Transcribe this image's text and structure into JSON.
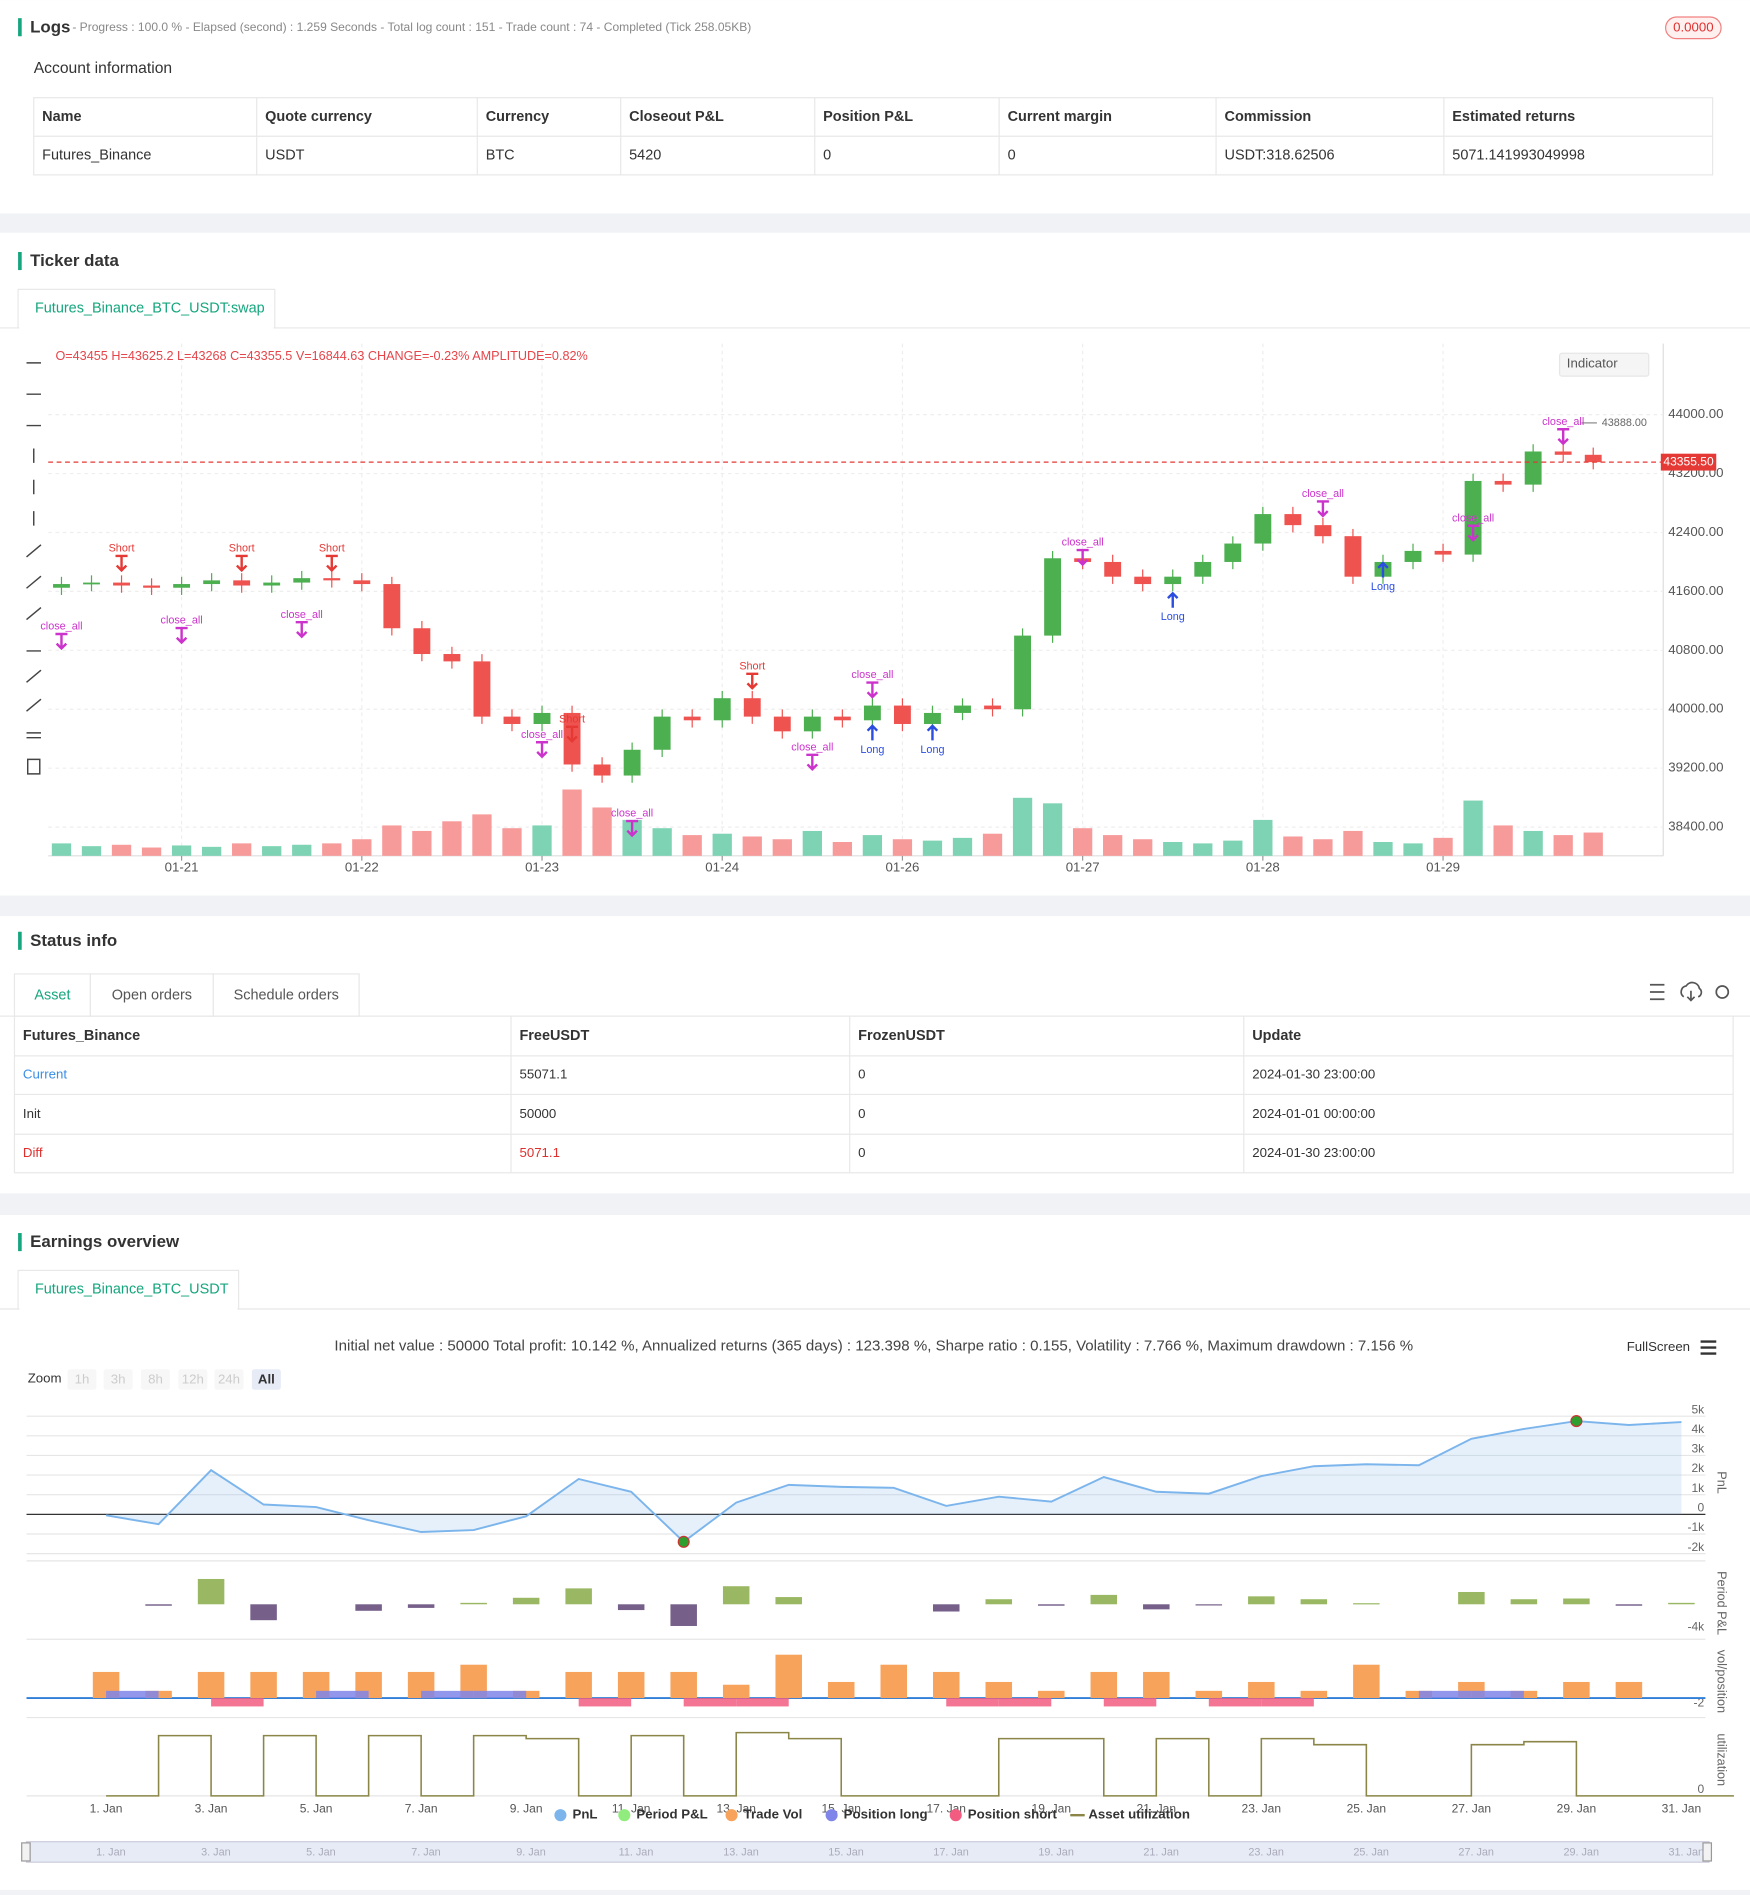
{
  "logs": {
    "title": "Logs",
    "status": "- Progress : 100.0 % - Elapsed (second) : 1.259  Seconds - Total log count : 151 - Trade count : 74 - Completed (Tick 258.05KB)",
    "badge": "0.0000"
  },
  "account": {
    "title": "Account information",
    "header": [
      "Name",
      "Quote currency",
      "Currency",
      "Closeout P&L",
      "Position P&L",
      "Current margin",
      "Commission",
      "Estimated returns"
    ],
    "rows": [
      [
        "Futures_Binance",
        "USDT",
        "BTC",
        "5420",
        "0",
        "0",
        "USDT:318.62506",
        "5071.141993049998"
      ]
    ]
  },
  "ticker": {
    "title": "Ticker data",
    "tab": "Futures_Binance_BTC_USDT:swap",
    "indicator": "Indicator"
  },
  "status": {
    "title": "Status info",
    "tabs": [
      "Asset",
      "Open orders",
      "Schedule orders"
    ],
    "header": [
      "Futures_Binance",
      "FreeUSDT",
      "FrozenUSDT",
      "Update"
    ],
    "rows": [
      [
        "Current",
        "55071.1",
        "0",
        "2024-01-30 23:00:00"
      ],
      [
        "Init",
        "50000",
        "0",
        "2024-01-01 00:00:00"
      ],
      [
        "Diff",
        "5071.1",
        "0",
        "2024-01-30 23:00:00"
      ]
    ],
    "link_color": "#3a8ee6",
    "diff_color": "#e0302e"
  },
  "earnings": {
    "title": "Earnings overview",
    "tab": "Futures_Binance_BTC_USDT",
    "summary": "Initial net value : 50000 Total profit: 10.142 %, Annualized returns (365 days) : 123.398 %, Sharpe ratio : 0.155, Volatility : 7.766 %, Maximum drawdown : 7.156 %",
    "fullscreen": "FullScreen",
    "zoom_label": "Zoom",
    "zoom": [
      "1h",
      "3h",
      "8h",
      "12h",
      "24h",
      "All"
    ]
  },
  "chart_data": [
    {
      "type": "candlestick",
      "header": "O=43455 H=43625.2 L=43268 C=43355.5 V=16844.63 CHANGE=-0.23% AMPLITUDE=0.82%",
      "categories": [
        null,
        null,
        null,
        null,
        "01-21",
        null,
        null,
        null,
        null,
        null,
        "01-22",
        null,
        null,
        null,
        null,
        null,
        "01-23",
        null,
        null,
        null,
        null,
        null,
        "01-24",
        null,
        null,
        null,
        null,
        null,
        "01-26",
        null,
        null,
        null,
        null,
        null,
        "01-27",
        null,
        null,
        null,
        null,
        null,
        "01-28",
        null,
        null,
        null,
        null,
        null,
        "01-29",
        null,
        null,
        null,
        null,
        null
      ],
      "open": [
        41650,
        41700,
        41720,
        41680,
        41650,
        41700,
        41750,
        41680,
        41720,
        41780,
        41750,
        41700,
        41100,
        40750,
        40650,
        39900,
        39800,
        39950,
        39250,
        39100,
        39450,
        39900,
        39850,
        40150,
        39900,
        39700,
        39900,
        39850,
        40050,
        39800,
        39950,
        40050,
        40000,
        41000,
        42050,
        42000,
        41800,
        41700,
        41800,
        42000,
        42250,
        42650,
        42500,
        42350,
        41800,
        42000,
        42150,
        42100,
        43100,
        43050,
        43500,
        43455
      ],
      "close": [
        41700,
        41720,
        41680,
        41650,
        41700,
        41750,
        41680,
        41720,
        41780,
        41750,
        41700,
        41100,
        40750,
        40650,
        39900,
        39800,
        39950,
        39250,
        39100,
        39450,
        39900,
        39850,
        40150,
        39900,
        39700,
        39900,
        39850,
        40050,
        39800,
        39950,
        40050,
        40000,
        41000,
        42050,
        42000,
        41800,
        41700,
        41800,
        42000,
        42250,
        42650,
        42500,
        42350,
        41800,
        42000,
        42150,
        42100,
        43100,
        43050,
        43500,
        43455,
        43355.5
      ],
      "volume": [
        9000,
        7000,
        8000,
        6000,
        7500,
        6500,
        9000,
        7000,
        8000,
        9000,
        12000,
        22000,
        18000,
        25000,
        30000,
        20000,
        22000,
        48000,
        35000,
        26000,
        20000,
        15000,
        16000,
        14000,
        12000,
        18000,
        10000,
        15000,
        12000,
        11000,
        13000,
        16000,
        42000,
        38000,
        20000,
        15000,
        12000,
        10000,
        9000,
        11000,
        26000,
        14000,
        12000,
        18000,
        10000,
        9000,
        13000,
        40000,
        22000,
        18000,
        15000,
        16844.63
      ],
      "up_color": "#4caf50",
      "down_color": "#ef5350",
      "up_volume_color": "#7dd3b4",
      "down_volume_color": "#f79a9a",
      "ylim": [
        38010,
        44965
      ],
      "yticks": [
        {
          "value": 38400,
          "label": "38400.00"
        },
        {
          "value": 39200,
          "label": "39200.00"
        },
        {
          "value": 40000,
          "label": "40000.00"
        },
        {
          "value": 40800,
          "label": "40800.00"
        },
        {
          "value": 41600,
          "label": "41600.00"
        },
        {
          "value": 42400,
          "label": "42400.00"
        },
        {
          "value": 43200,
          "label": "43200.00"
        },
        {
          "value": 44000,
          "label": "44000.00"
        }
      ],
      "grid": true,
      "last_price": {
        "value": 43355.5,
        "label": "43355.50",
        "color": "#e53935"
      },
      "high_mark": {
        "value": 43888,
        "label": "43888.00"
      },
      "markers": [
        {
          "text": "Short",
          "candle": 2,
          "price": 42180,
          "color": "#e53935",
          "dir": "down"
        },
        {
          "text": "close_all",
          "candle": 0,
          "price": 41120,
          "color": "#cc33cc",
          "dir": "down"
        },
        {
          "text": "close_all",
          "candle": 4,
          "price": 41200,
          "color": "#cc33cc",
          "dir": "down"
        },
        {
          "text": "Short",
          "candle": 6,
          "price": 42180,
          "color": "#e53935",
          "dir": "down"
        },
        {
          "text": "close_all",
          "candle": 8,
          "price": 41280,
          "color": "#cc33cc",
          "dir": "down"
        },
        {
          "text": "Short",
          "candle": 9,
          "price": 42180,
          "color": "#e53935",
          "dir": "down"
        },
        {
          "text": "close_all",
          "candle": 16,
          "price": 39650,
          "color": "#cc33cc",
          "dir": "down"
        },
        {
          "text": "Short",
          "candle": 17,
          "price": 39860,
          "color": "#e53935",
          "dir": "down"
        },
        {
          "text": "close_all",
          "candle": 19,
          "price": 38580,
          "color": "#cc33cc",
          "dir": "down"
        },
        {
          "text": "Short",
          "candle": 23,
          "price": 40580,
          "color": "#e53935",
          "dir": "down"
        },
        {
          "text": "close_all",
          "candle": 25,
          "price": 39480,
          "color": "#cc33cc",
          "dir": "down"
        },
        {
          "text": "close_all",
          "candle": 27,
          "price": 40460,
          "color": "#cc33cc",
          "dir": "down"
        },
        {
          "text": "Long",
          "candle": 27,
          "price": 39480,
          "color": "#2b4de0",
          "dir": "up"
        },
        {
          "text": "Long",
          "candle": 29,
          "price": 39480,
          "color": "#2b4de0",
          "dir": "up"
        },
        {
          "text": "close_all",
          "candle": 34,
          "price": 42260,
          "color": "#cc33cc",
          "dir": "down"
        },
        {
          "text": "Long",
          "candle": 37,
          "price": 41280,
          "color": "#2b4de0",
          "dir": "up"
        },
        {
          "text": "close_all",
          "candle": 42,
          "price": 42920,
          "color": "#cc33cc",
          "dir": "down"
        },
        {
          "text": "Long",
          "candle": 44,
          "price": 41690,
          "color": "#2b4de0",
          "dir": "up"
        },
        {
          "text": "close_all",
          "candle": 47,
          "price": 42590,
          "color": "#cc33cc",
          "dir": "down"
        },
        {
          "text": "close_all",
          "candle": 50,
          "price": 43900,
          "color": "#cc33cc",
          "dir": "down"
        }
      ]
    },
    {
      "type": "multi-panel",
      "categories": [
        "1. Jan",
        null,
        "3. Jan",
        null,
        "5. Jan",
        null,
        "7. Jan",
        null,
        "9. Jan",
        null,
        "11. Jan",
        null,
        "13. Jan",
        null,
        "15. Jan",
        null,
        "17. Jan",
        null,
        "19. Jan",
        null,
        "21. Jan",
        null,
        "23. Jan",
        null,
        "25. Jan",
        null,
        "27. Jan",
        null,
        "29. Jan",
        null,
        "31. Jan"
      ],
      "panels": [
        {
          "ylabel": "PnL",
          "ylim": [
            -2370,
            5610
          ],
          "yticks": [
            {
              "value": -2000,
              "label": "-2k"
            },
            {
              "value": -1000,
              "label": "-1k"
            },
            0,
            {
              "value": 1000,
              "label": "1k"
            },
            {
              "value": 2000,
              "label": "2k"
            },
            {
              "value": 3000,
              "label": "3k"
            },
            {
              "value": 4000,
              "label": "4k"
            },
            {
              "value": 5000,
              "label": "5k"
            }
          ]
        },
        {
          "ylabel": "Period P&L",
          "ylim": [
            -4830,
            5170
          ],
          "yticks": [
            {
              "value": -4000,
              "label": "-4k"
            }
          ]
        },
        {
          "ylabel": "vol/position",
          "ylim": [
            -3.5,
            9.5
          ],
          "yticks": [
            -2
          ]
        },
        {
          "ylabel": "utilization",
          "ylim": [
            0,
            1.2
          ],
          "yticks": [
            0
          ]
        }
      ],
      "series": [
        {
          "name": "PnL",
          "type": "area",
          "panel": 0,
          "color": "#7cb5ec",
          "values": [
            -50,
            -500,
            2250,
            500,
            370,
            -300,
            -900,
            -800,
            -100,
            1800,
            1150,
            -1400,
            600,
            1500,
            1400,
            1350,
            430,
            900,
            650,
            1900,
            1150,
            1050,
            1950,
            2450,
            2550,
            2500,
            3850,
            4350,
            4750,
            4550,
            4700
          ]
        },
        {
          "name": "Period P&L",
          "type": "bar",
          "panel": 1,
          "color": "#90ed7d",
          "bar_color": "#9ab864",
          "negative_color": "#76608a",
          "values": [
            null,
            -200,
            3500,
            -2200,
            null,
            -900,
            -500,
            200,
            900,
            2200,
            -800,
            -3000,
            2500,
            1000,
            null,
            null,
            -1000,
            700,
            -200,
            1300,
            -700,
            -150,
            1100,
            700,
            150,
            null,
            1700,
            700,
            800,
            -200,
            200
          ]
        },
        {
          "name": "Trade Vol",
          "type": "bar",
          "panel": 2,
          "color": "#f7a35c",
          "values": [
            4.7,
            1.3,
            4.7,
            4.7,
            4.7,
            4.7,
            4.7,
            6,
            1.3,
            4.7,
            4.7,
            4.7,
            2.4,
            7.8,
            2.9,
            6,
            4.7,
            2.9,
            1.3,
            4.7,
            4.7,
            1.3,
            2.9,
            1.3,
            6,
            1.3,
            2.9,
            1.3,
            2.9,
            2.9,
            null
          ]
        },
        {
          "name": "Position long",
          "type": "span",
          "panel": 2,
          "color": "#8085e9",
          "values": [
            1.3,
            null,
            null,
            null,
            1.3,
            null,
            1.3,
            1.3,
            null,
            null,
            null,
            null,
            null,
            null,
            null,
            null,
            null,
            null,
            null,
            null,
            null,
            null,
            null,
            null,
            null,
            1.3,
            1.3,
            null,
            null,
            null,
            null
          ]
        },
        {
          "name": "Position short",
          "type": "span",
          "panel": 2,
          "color": "#f15c80",
          "values": [
            null,
            null,
            -1.5,
            null,
            null,
            null,
            null,
            null,
            null,
            -1.5,
            null,
            -1.5,
            -1.5,
            null,
            null,
            null,
            -1.5,
            -1.5,
            null,
            -1.5,
            null,
            -1.5,
            -1.5,
            null,
            null,
            null,
            null,
            null,
            null,
            null,
            null
          ]
        },
        {
          "name": "Asset utilization",
          "type": "step",
          "panel": 3,
          "color": "#8b8648",
          "values": [
            0,
            1,
            0,
            1,
            0,
            1,
            0,
            1,
            0.95,
            0,
            1,
            0,
            1.05,
            0.95,
            0,
            0,
            0,
            0.95,
            0.95,
            0,
            0.95,
            0,
            0.95,
            0.85,
            0,
            0,
            0.85,
            0.9,
            0,
            0,
            0
          ]
        }
      ]
    }
  ]
}
